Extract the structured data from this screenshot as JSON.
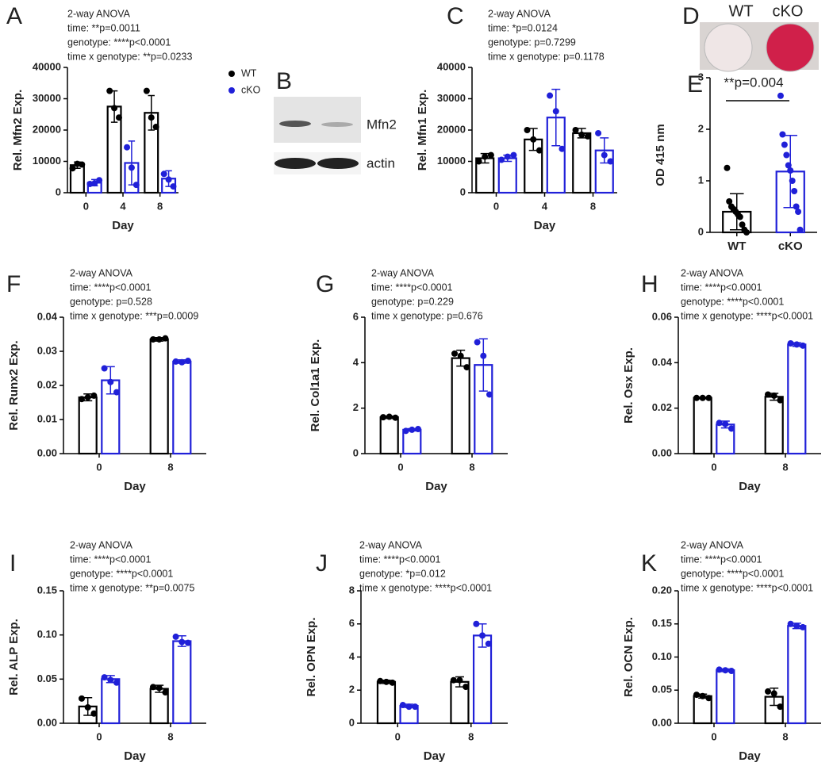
{
  "chart_data": [
    {
      "type": "bar",
      "panel": "A",
      "lines": [
        "2-way ANOVA",
        "time: **p=0.0011",
        "genotype: ****p<0.0001",
        "time x genotype: **p=0.0233"
      ],
      "ylabel": "Rel. Mfn2 Exp.",
      "xlabel": "Day",
      "categories": [
        "0",
        "4",
        "8"
      ],
      "ylim": [
        0,
        40000
      ],
      "yticks": [
        0,
        10000,
        20000,
        30000,
        40000
      ],
      "series": [
        {
          "color": "#000000",
          "values": [
            8800,
            27500,
            25500
          ],
          "errors": [
            1000,
            5000,
            5500
          ],
          "points": [
            [
              7800,
              9200,
              9000
            ],
            [
              32500,
              27000,
              24000
            ],
            [
              32500,
              24000,
              21000
            ]
          ]
        },
        {
          "color": "#2020d8",
          "values": [
            3200,
            9500,
            4500
          ],
          "errors": [
            1000,
            7000,
            2500
          ],
          "points": [
            [
              2800,
              3000,
              4000
            ],
            [
              14500,
              8000,
              2500
            ],
            [
              6000,
              4200,
              2000
            ]
          ]
        }
      ]
    },
    {
      "type": "bar",
      "panel": "C",
      "lines": [
        "2-way ANOVA",
        "time: *p=0.0124",
        "genotype: p=0.7299",
        "time x genotype: p=0.1178"
      ],
      "ylabel": "Rel. Mfn1 Exp.",
      "xlabel": "Day",
      "categories": [
        "0",
        "4",
        "8"
      ],
      "ylim": [
        0,
        40000
      ],
      "yticks": [
        0,
        10000,
        20000,
        30000,
        40000
      ],
      "series": [
        {
          "color": "#000000",
          "values": [
            11000,
            17000,
            19000
          ],
          "errors": [
            1500,
            3500,
            1500
          ],
          "points": [
            [
              10000,
              11500,
              12000
            ],
            [
              20000,
              17000,
              13500
            ],
            [
              20000,
              18500,
              18000
            ]
          ]
        },
        {
          "color": "#2020d8",
          "values": [
            11000,
            24000,
            13500
          ],
          "errors": [
            1000,
            9000,
            4000
          ],
          "points": [
            [
              10500,
              11500,
              12000
            ],
            [
              31000,
              26000,
              14000
            ],
            [
              19000,
              12000,
              10000
            ]
          ]
        }
      ]
    },
    {
      "type": "bar",
      "panel": "E",
      "annotation": "**p=0.004",
      "ylabel": "OD 415 nm",
      "categories": [
        "WT",
        "cKO"
      ],
      "ylim": [
        0,
        3
      ],
      "yticks": [
        0,
        1,
        2,
        3
      ],
      "values": [
        0.4,
        1.18
      ],
      "errors": [
        0.35,
        0.7
      ],
      "colors": [
        "#000000",
        "#2020d8"
      ],
      "points": [
        [
          1.25,
          0.6,
          0.5,
          0.45,
          0.4,
          0.35,
          0.3,
          0.15,
          0.05,
          0.0
        ],
        [
          2.65,
          1.9,
          1.7,
          1.5,
          1.3,
          1.2,
          1.0,
          0.8,
          0.5,
          0.4,
          0.05
        ]
      ]
    },
    {
      "type": "bar",
      "panel": "F",
      "lines": [
        "2-way ANOVA",
        "time: ****p<0.0001",
        "genotype: p=0.528",
        "time x genotype: ***p=0.0009"
      ],
      "ylabel": "Rel. Runx2 Exp.",
      "xlabel": "Day",
      "categories": [
        "0",
        "8"
      ],
      "ylim": [
        0,
        0.04
      ],
      "yticks": [
        {
          "value": 0,
          "label": "0.00"
        },
        {
          "value": 0.01,
          "label": "0.01"
        },
        {
          "value": 0.02,
          "label": "0.02"
        },
        {
          "value": 0.03,
          "label": "0.03"
        },
        {
          "value": 0.04,
          "label": "0.04"
        }
      ],
      "series": [
        {
          "color": "#000000",
          "values": [
            0.0165,
            0.0335
          ],
          "errors": [
            0.001,
            0.0005
          ],
          "points": [
            [
              0.016,
              0.0165,
              0.017
            ],
            [
              0.0335,
              0.0335,
              0.0338
            ]
          ]
        },
        {
          "color": "#2020d8",
          "values": [
            0.0215,
            0.027
          ],
          "errors": [
            0.004,
            0.0005
          ],
          "points": [
            [
              0.025,
              0.021,
              0.018
            ],
            [
              0.027,
              0.0268,
              0.0272
            ]
          ]
        }
      ]
    },
    {
      "type": "bar",
      "panel": "G",
      "lines": [
        "2-way ANOVA",
        "time: ****p<0.0001",
        "genotype: p=0.229",
        "time x genotype: p=0.676"
      ],
      "ylabel": "Rel. Col1a1 Exp.",
      "xlabel": "Day",
      "categories": [
        "0",
        "8"
      ],
      "ylim": [
        0,
        6
      ],
      "yticks": [
        0,
        2,
        4,
        6
      ],
      "series": [
        {
          "color": "#000000",
          "values": [
            1.6,
            4.2
          ],
          "errors": [
            0.05,
            0.35
          ],
          "points": [
            [
              1.6,
              1.62,
              1.58
            ],
            [
              4.4,
              4.3,
              3.8
            ]
          ]
        },
        {
          "color": "#2020d8",
          "values": [
            1.05,
            3.9
          ],
          "errors": [
            0.05,
            1.15
          ],
          "points": [
            [
              1.0,
              1.05,
              1.08
            ],
            [
              4.9,
              4.3,
              2.6
            ]
          ]
        }
      ]
    },
    {
      "type": "bar",
      "panel": "H",
      "lines": [
        "2-way ANOVA",
        "time: ****p<0.0001",
        "genotype: ****p<0.0001",
        "time x genotype: ****p<0.0001"
      ],
      "ylabel": "Rel. Osx Exp.",
      "xlabel": "Day",
      "categories": [
        "0",
        "8"
      ],
      "ylim": [
        0,
        0.06
      ],
      "yticks": [
        {
          "value": 0,
          "label": "0.00"
        },
        {
          "value": 0.02,
          "label": "0.02"
        },
        {
          "value": 0.04,
          "label": "0.04"
        },
        {
          "value": 0.06,
          "label": "0.06"
        }
      ],
      "series": [
        {
          "color": "#000000",
          "values": [
            0.0245,
            0.025
          ],
          "errors": [
            0.0003,
            0.0015
          ],
          "points": [
            [
              0.0245,
              0.0245,
              0.0245
            ],
            [
              0.026,
              0.0255,
              0.0235
            ]
          ]
        },
        {
          "color": "#2020d8",
          "values": [
            0.0128,
            0.048
          ],
          "errors": [
            0.0015,
            0.0008
          ],
          "points": [
            [
              0.0135,
              0.013,
              0.011
            ],
            [
              0.0485,
              0.048,
              0.0475
            ]
          ]
        }
      ]
    },
    {
      "type": "bar",
      "panel": "I",
      "lines": [
        "2-way ANOVA",
        "time: ****p<0.0001",
        "genotype: ****p<0.0001",
        "time x genotype: **p=0.0075"
      ],
      "ylabel": "Rel. ALP Exp.",
      "xlabel": "Day",
      "categories": [
        "0",
        "8"
      ],
      "ylim": [
        0,
        0.15
      ],
      "yticks": [
        {
          "value": 0,
          "label": "0.00"
        },
        {
          "value": 0.05,
          "label": "0.05"
        },
        {
          "value": 0.1,
          "label": "0.10"
        },
        {
          "value": 0.15,
          "label": "0.15"
        }
      ],
      "series": [
        {
          "color": "#000000",
          "values": [
            0.019,
            0.039
          ],
          "errors": [
            0.01,
            0.004
          ],
          "points": [
            [
              0.028,
              0.018,
              0.011
            ],
            [
              0.041,
              0.04,
              0.035
            ]
          ]
        },
        {
          "color": "#2020d8",
          "values": [
            0.05,
            0.093
          ],
          "errors": [
            0.004,
            0.006
          ],
          "points": [
            [
              0.052,
              0.049,
              0.046
            ],
            [
              0.098,
              0.092,
              0.091
            ]
          ]
        }
      ]
    },
    {
      "type": "bar",
      "panel": "J",
      "lines": [
        "2-way ANOVA",
        "time: ****p<0.0001",
        "genotype: *p=0.012",
        "time x genotype: ****p<0.0001"
      ],
      "ylabel": "Rel. OPN Exp.",
      "xlabel": "Day",
      "categories": [
        "0",
        "8"
      ],
      "ylim": [
        0,
        8
      ],
      "yticks": [
        0,
        2,
        4,
        6,
        8
      ],
      "series": [
        {
          "color": "#000000",
          "values": [
            2.5,
            2.5
          ],
          "errors": [
            0.1,
            0.3
          ],
          "points": [
            [
              2.55,
              2.5,
              2.45
            ],
            [
              2.6,
              2.6,
              2.2
            ]
          ]
        },
        {
          "color": "#2020d8",
          "values": [
            1.05,
            5.3
          ],
          "errors": [
            0.1,
            0.7
          ],
          "points": [
            [
              1.1,
              1.0,
              1.0
            ],
            [
              6.0,
              5.3,
              4.8
            ]
          ]
        }
      ]
    },
    {
      "type": "bar",
      "panel": "K",
      "lines": [
        "2-way ANOVA",
        "time: ****p<0.0001",
        "genotype: ****p<0.0001",
        "time x genotype: ****p<0.0001"
      ],
      "ylabel": "Rel. OCN Exp.",
      "xlabel": "Day",
      "categories": [
        "0",
        "8"
      ],
      "ylim": [
        0,
        0.2
      ],
      "yticks": [
        {
          "value": 0,
          "label": "0.00"
        },
        {
          "value": 0.05,
          "label": "0.05"
        },
        {
          "value": 0.1,
          "label": "0.10"
        },
        {
          "value": 0.15,
          "label": "0.15"
        },
        {
          "value": 0.2,
          "label": "0.20"
        }
      ],
      "series": [
        {
          "color": "#000000",
          "values": [
            0.041,
            0.04
          ],
          "errors": [
            0.003,
            0.013
          ],
          "points": [
            [
              0.043,
              0.041,
              0.038
            ],
            [
              0.048,
              0.045,
              0.025
            ]
          ]
        },
        {
          "color": "#2020d8",
          "values": [
            0.08,
            0.147
          ],
          "errors": [
            0.002,
            0.004
          ],
          "points": [
            [
              0.081,
              0.08,
              0.079
            ],
            [
              0.15,
              0.147,
              0.145
            ]
          ]
        }
      ]
    }
  ],
  "legend": [
    {
      "name": "WT",
      "color": "#000000"
    },
    {
      "name": "cKO",
      "color": "#2020d8"
    }
  ],
  "blot": {
    "panel": "B",
    "labels": [
      "Mfn2",
      "actin"
    ]
  },
  "stain": {
    "panel": "D",
    "labels": [
      "WT",
      "cKO"
    ]
  }
}
